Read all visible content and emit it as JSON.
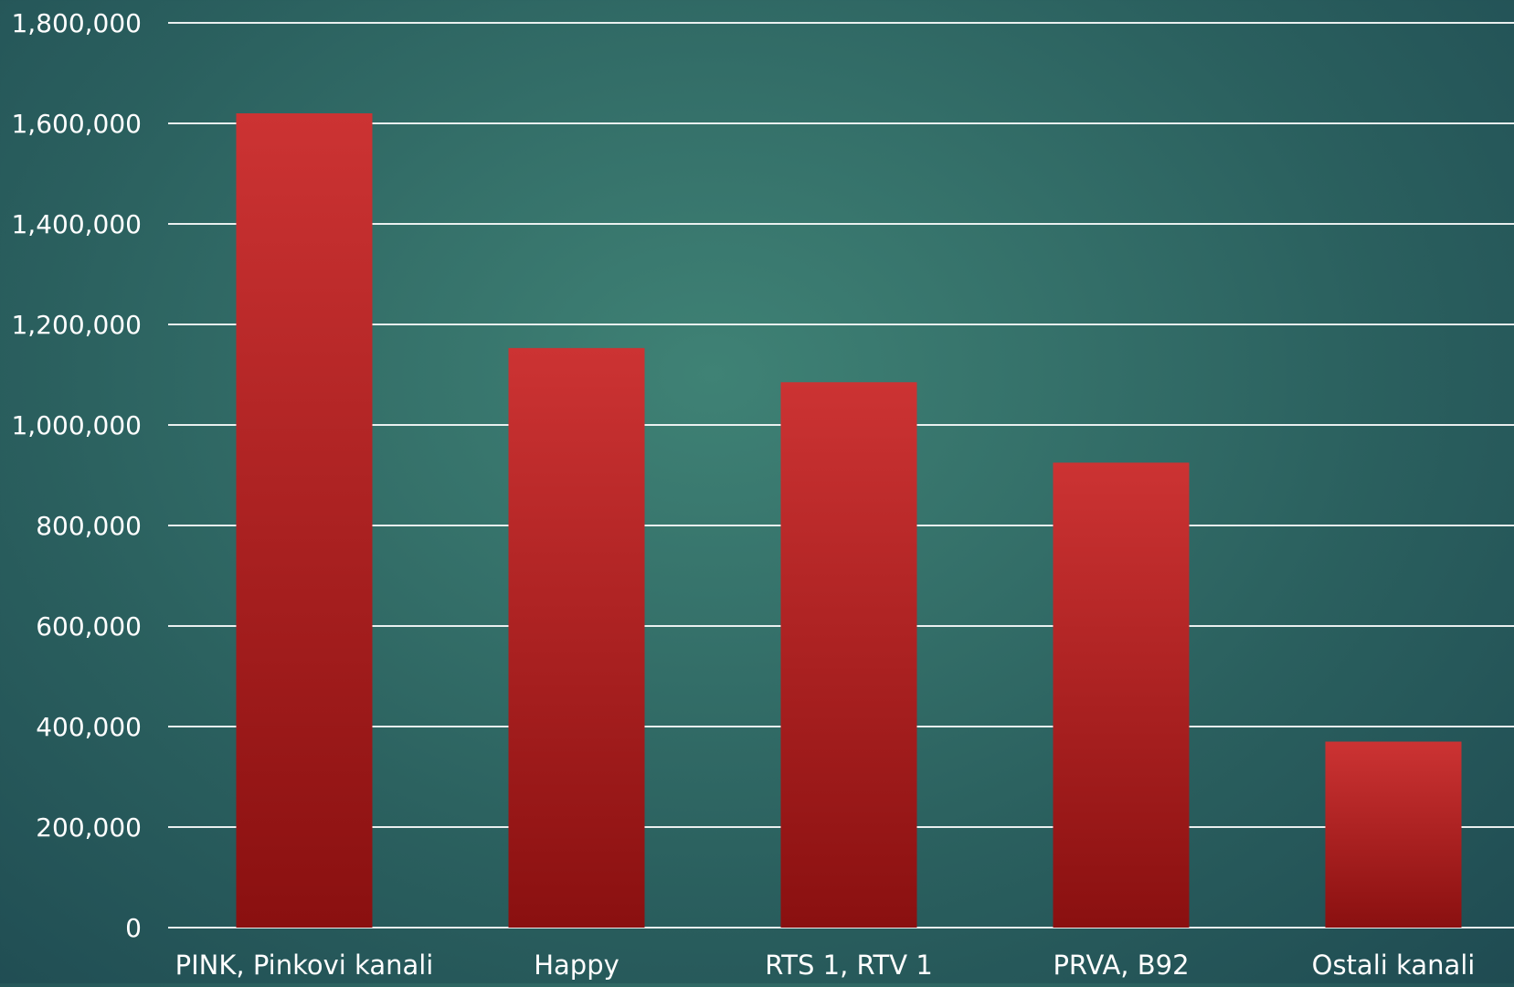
{
  "chart_data": {
    "type": "bar",
    "title": "",
    "xlabel": "",
    "ylabel": "",
    "categories": [
      "PINK, Pinkovi kanali",
      "Happy",
      "RTS 1, RTV 1",
      "PRVA, B92",
      "Ostali kanali"
    ],
    "values": [
      1620000,
      1153000,
      1085000,
      925000,
      370000
    ],
    "ylim": [
      0,
      1800000
    ],
    "yticks": [
      0,
      200000,
      400000,
      600000,
      800000,
      1000000,
      1200000,
      1400000,
      1600000,
      1800000
    ],
    "ytick_labels": [
      "0",
      "200,000",
      "400,000",
      "600,000",
      "800,000",
      "1,000,000",
      "1,200,000",
      "1,400,000",
      "1,600,000",
      "1,800,000"
    ],
    "grid": true,
    "legend": "none",
    "colors": {
      "bar_top": "#cc3333",
      "bar_bottom": "#8a1010",
      "background_center": "#3f8275",
      "background_edge": "#1f4b52",
      "gridline": "#ffffff",
      "text": "#ffffff"
    }
  }
}
